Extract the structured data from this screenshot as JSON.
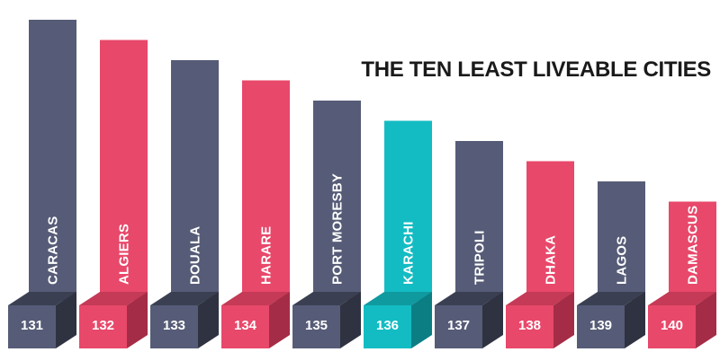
{
  "chart_data": {
    "type": "bar",
    "title": "THE TEN LEAST LIVEABLE CITIES",
    "categories": [
      "CARACAS",
      "ALGIERS",
      "DOUALA",
      "HARARE",
      "PORT MORESBY",
      "KARACHI",
      "TRIPOLI",
      "DHAKA",
      "LAGOS",
      "DAMASCUS"
    ],
    "ranks": [
      "131",
      "132",
      "133",
      "134",
      "135",
      "136",
      "137",
      "138",
      "139",
      "140"
    ],
    "values": [
      131,
      132,
      133,
      134,
      135,
      136,
      137,
      138,
      139,
      140
    ],
    "colors": {
      "slate_front": "#565c77",
      "slate_side": "#2f3240",
      "slate_top": "#3b3f52",
      "pink_front": "#e8486a",
      "pink_side": "#a52c46",
      "pink_top": "#c43a57",
      "teal_front": "#13bcc3",
      "teal_side": "#0b7e83",
      "teal_top": "#0f9aa0",
      "text": "#ffffff",
      "title": "#1a1a1a",
      "background": "#ffffff"
    },
    "bar_palette": [
      "slate",
      "pink",
      "slate",
      "pink",
      "slate",
      "teal",
      "slate",
      "pink",
      "slate",
      "pink"
    ]
  }
}
